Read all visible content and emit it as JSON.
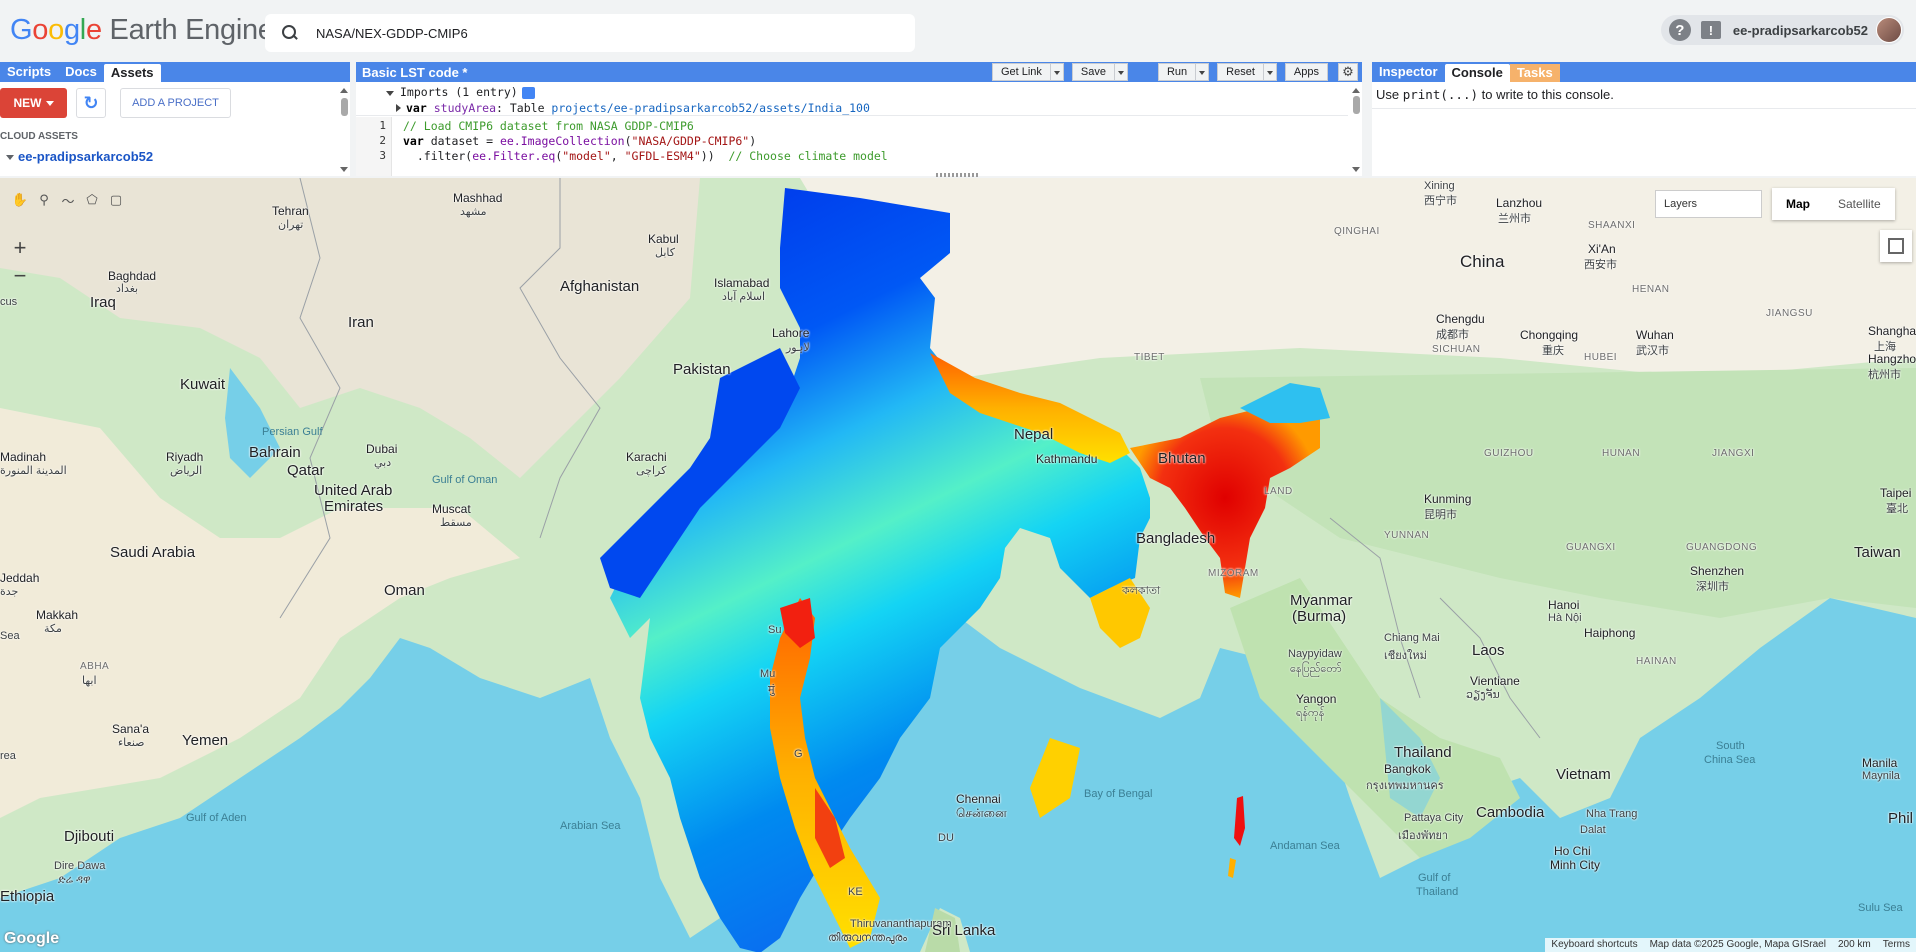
{
  "header": {
    "logo_google": [
      "G",
      "o",
      "o",
      "g",
      "l",
      "e"
    ],
    "logo_rest": " Earth Engine",
    "search_value": "NASA/NEX-GDDP-CMIP6",
    "user": "ee-pradipsarkarcob52"
  },
  "left_panel": {
    "tabs": [
      "Scripts",
      "Docs",
      "Assets"
    ],
    "active_tab": "Assets",
    "new_label": "NEW",
    "add_project_label": "ADD A PROJECT",
    "cloud_assets_label": "CLOUD ASSETS",
    "project": "ee-pradipsarkarcob52"
  },
  "code_panel": {
    "title": "Basic LST code *",
    "buttons": {
      "get_link": "Get Link",
      "save": "Save",
      "run": "Run",
      "reset": "Reset",
      "apps": "Apps"
    },
    "imports_header": "Imports (1 entry)",
    "import_var_kw": "var",
    "import_var_name": "studyArea",
    "import_type": ": Table ",
    "import_path": "projects/ee-pradipsarkarcob52/assets/India_100",
    "lines": [
      {
        "num": "1",
        "comment": "// Load CMIP6 dataset from NASA GDDP-CMIP6"
      },
      {
        "num": "2",
        "kw": "var",
        "name": " dataset = ",
        "obj": "ee.ImageCollection",
        "open": "(",
        "str": "\"NASA/GDDP-CMIP6\"",
        "close": ")"
      },
      {
        "num": "3",
        "pre": "  .filter(",
        "obj": "ee.Filter.eq",
        "open": "(",
        "str1": "\"model\"",
        "comma": ", ",
        "str2": "\"GFDL-ESM4\"",
        "close": "))  ",
        "comment": "// Choose climate model"
      }
    ]
  },
  "right_panel": {
    "tabs": [
      "Inspector",
      "Console",
      "Tasks"
    ],
    "active_tab": "Console",
    "console_pre": "Use ",
    "console_code": "print(...)",
    "console_post": " to write to this console."
  },
  "map": {
    "layers_label": "Layers",
    "map_type": [
      "Map",
      "Satellite"
    ],
    "active_type": "Map",
    "zoom_in": "+",
    "zoom_out": "−",
    "attribution": [
      "Keyboard shortcuts",
      "Map data ©2025 Google, Mapa GISrael",
      "200 km",
      "Terms"
    ],
    "google_mark": "Google",
    "labels": {
      "tehran": "Tehran",
      "tehran_fa": "تهران",
      "mashhad": "Mashhad",
      "mashhad_fa": "مشهد",
      "kabul": "Kabul",
      "kabul_ps": "کابل",
      "afghanistan": "Afghanistan",
      "baghdad": "Baghdad",
      "baghdad_ar": "بغداد",
      "iraq": "Iraq",
      "iran": "Iran",
      "islamabad": "Islamabad",
      "islamabad_ur": "اسلام آباد",
      "lahore": "Lahore",
      "lahore_ur": "لاہور",
      "pakistan": "Pakistan",
      "kuwait": "Kuwait",
      "persian_gulf": "Persian Gulf",
      "bahrain": "Bahrain",
      "dubai": "Dubai",
      "dubai_ar": "دبي",
      "karachi": "Karachi",
      "karachi_ur": "کراچی",
      "riyadh": "Riyadh",
      "riyadh_ar": "الرياض",
      "qatar": "Qatar",
      "uae1": "United Arab",
      "uae2": "Emirates",
      "madinah": "Madinah",
      "madinah_ar": "المدينة المنورة",
      "gulf_oman": "Gulf of Oman",
      "muscat": "Muscat",
      "muscat_ar": "مسقط",
      "saudi": "Saudi Arabia",
      "jeddah": "Jeddah",
      "jeddah_ar": "جدة",
      "makkah": "Makkah",
      "makkah_ar": "مكة",
      "oman": "Oman",
      "abha": "ABHA",
      "abha_ar": "ابها",
      "sanaa": "Sana'a",
      "sanaa_ar": "صنعاء",
      "yemen": "Yemen",
      "gulf_aden": "Gulf of Aden",
      "arabian_sea": "Arabian Sea",
      "djibouti": "Djibouti",
      "dire_dawa": "Dire Dawa",
      "dire_dawa_am": "ድሬ ዳዋ",
      "ethiopia": "Ethiopia",
      "sea_left": "Sea",
      "cus": "cus",
      "rea": "rea",
      "xining": "Xining",
      "xining_zh": "西宁市",
      "lanzhou": "Lanzhou",
      "lanzhou_zh": "兰州市",
      "qinghai": "QINGHAI",
      "shaanxi": "SHAANXI",
      "xian": "Xi'An",
      "xian_zh": "西安市",
      "china": "China",
      "henan": "HENAN",
      "tibet": "TIBET",
      "chengdu": "Chengdu",
      "chengdu_zh": "成都市",
      "chongqing": "Chongqing",
      "chongqing_zh": "重庆",
      "wuhan": "Wuhan",
      "wuhan_zh": "武汉市",
      "hubei": "HUBEI",
      "jiangsu": "JIANGSU",
      "shanghai": "Shangha",
      "shanghai_zh": "上海",
      "hangzhou": "Hangzho",
      "hangzhou_zh": "杭州市",
      "sichuan": "SICHUAN",
      "nepal": "Nepal",
      "kathmandu": "Kathmandu",
      "bhutan": "Bhutan",
      "guizhou": "GUIZHOU",
      "hunan": "HUNAN",
      "jiangxi": "JIANGXI",
      "kunming": "Kunming",
      "kunming_zh": "昆明市",
      "taipei": "Taipei",
      "taipei_zh": "臺北",
      "yunnan": "YUNNAN",
      "guangxi": "GUANGXI",
      "guangdong": "GUANGDONG",
      "bangladesh": "Bangladesh",
      "kolkata": "কলকাতা",
      "mizoram": "MIZORAM",
      "nagaland": "LAND",
      "shenzhen": "Shenzhen",
      "shenzhen_zh": "深圳市",
      "taiwan": "Taiwan",
      "myanmar1": "Myanmar",
      "myanmar2": "(Burma)",
      "hanoi": "Hanoi",
      "hanoi_vi": "Hà Nội",
      "haiphong": "Haiphong",
      "chiangmai": "Chiang Mai",
      "chiangmai_th": "เชียงใหม่",
      "naypyidaw": "Naypyidaw",
      "naypyidaw_my": "နေပြည်တော်",
      "laos": "Laos",
      "hainan": "HAINAN",
      "vientiane": "Vientiane",
      "vientiane_lo": "ວຽງຈັນ",
      "yangon": "Yangon",
      "yangon_my": "ရန်ကုန်",
      "thailand": "Thailand",
      "bangkok": "Bangkok",
      "bangkok_th": "กรุงเทพมหานคร",
      "vietnam": "Vietnam",
      "south_china_sea1": "South",
      "south_china_sea2": "China Sea",
      "manila": "Manila",
      "manila_tl": "Maynila",
      "cambodia": "Cambodia",
      "nha_trang": "Nha Trang",
      "dalat": "Dalat",
      "pattaya": "Pattaya City",
      "pattaya_th": "เมืองพัทยา",
      "hcmc1": "Ho Chi",
      "hcmc2": "Minh City",
      "gulf_thailand1": "Gulf of",
      "gulf_thailand2": "Thailand",
      "andaman": "Andaman Sea",
      "bay_bengal": "Bay of Bengal",
      "chennai": "Chennai",
      "chennai_ta": "சென்னை",
      "thiruvananthapuram": "Thiruvananthapuram",
      "thiruvananthapuram_ml": "തിരുവനന്തപുരം",
      "sri_lanka": "Sri Lanka",
      "sulu": "Sulu Sea",
      "phil": "Phil",
      "surat": "Su",
      "mumbai": "Mu",
      "mumbai_mr": "मुं",
      "goa": "G",
      "kerala": "KE",
      "du": "DU"
    }
  }
}
